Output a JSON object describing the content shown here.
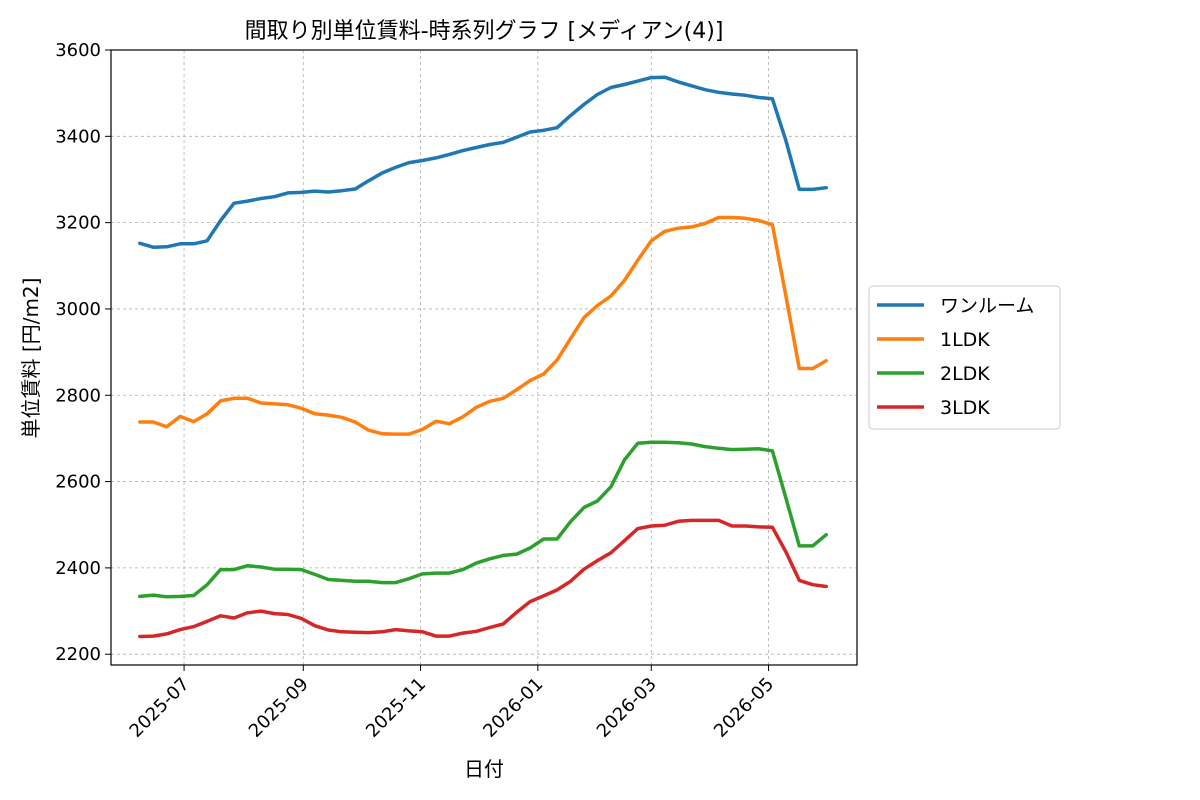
{
  "chart_data": {
    "type": "line",
    "title": "間取り別単位賃料-時系列グラフ [メディアン(4)]",
    "xlabel": "日付",
    "ylabel": "単位賃料 [円/m2]",
    "ylim": [
      2175,
      3600
    ],
    "yticks": [
      2200,
      2400,
      2600,
      2800,
      3000,
      3200,
      3400,
      3600
    ],
    "xlim": [
      "2025-05-24",
      "2026-06-16"
    ],
    "xticks": [
      "2025-07-01",
      "2025-09-01",
      "2025-11-01",
      "2026-01-01",
      "2026-03-01",
      "2026-05-01"
    ],
    "xtick_labels": [
      "2025-07",
      "2025-09",
      "2025-11",
      "2026-01",
      "2026-03",
      "2026-05"
    ],
    "grid": true,
    "legend_position": "right-outside",
    "x": [
      "2025-06-08",
      "2025-06-15",
      "2025-06-22",
      "2025-06-29",
      "2025-07-06",
      "2025-07-13",
      "2025-07-20",
      "2025-07-27",
      "2025-08-03",
      "2025-08-10",
      "2025-08-17",
      "2025-08-24",
      "2025-08-31",
      "2025-09-07",
      "2025-09-14",
      "2025-09-21",
      "2025-09-28",
      "2025-10-05",
      "2025-10-12",
      "2025-10-19",
      "2025-10-26",
      "2025-11-02",
      "2025-11-09",
      "2025-11-16",
      "2025-11-23",
      "2025-11-30",
      "2025-12-07",
      "2025-12-14",
      "2025-12-21",
      "2025-12-28",
      "2026-01-04",
      "2026-01-11",
      "2026-01-18",
      "2026-01-25",
      "2026-02-01",
      "2026-02-08",
      "2026-02-15",
      "2026-02-22",
      "2026-03-01",
      "2026-03-08",
      "2026-03-15",
      "2026-03-22",
      "2026-03-29",
      "2026-04-05",
      "2026-04-12",
      "2026-04-19",
      "2026-04-26",
      "2026-05-03",
      "2026-05-10",
      "2026-05-17",
      "2026-05-24",
      "2026-05-31"
    ],
    "series": [
      {
        "name": "ワンルーム",
        "color": "#1f77b4",
        "values": [
          3152,
          3143,
          3144,
          3151,
          3151,
          3158,
          3205,
          3245,
          3250,
          3256,
          3260,
          3269,
          3270,
          3273,
          3271,
          3274,
          3278,
          3297,
          3315,
          3328,
          3339,
          3344,
          3350,
          3358,
          3367,
          3374,
          3381,
          3386,
          3398,
          3410,
          3414,
          3420,
          3448,
          3474,
          3497,
          3513,
          3520,
          3528,
          3536,
          3537,
          3526,
          3517,
          3508,
          3502,
          3498,
          3495,
          3490,
          3487,
          3390,
          3277,
          3277,
          3281
        ]
      },
      {
        "name": "1LDK",
        "color": "#ff7f0e",
        "values": [
          2738,
          2738,
          2727,
          2751,
          2739,
          2757,
          2787,
          2793,
          2793,
          2782,
          2780,
          2778,
          2770,
          2757,
          2754,
          2749,
          2738,
          2719,
          2711,
          2710,
          2710,
          2721,
          2740,
          2734,
          2750,
          2772,
          2786,
          2793,
          2813,
          2834,
          2849,
          2882,
          2931,
          2980,
          3008,
          3030,
          3066,
          3113,
          3158,
          3180,
          3187,
          3190,
          3198,
          3212,
          3212,
          3210,
          3205,
          3195,
          3030,
          2862,
          2862,
          2880
        ]
      },
      {
        "name": "2LDK",
        "color": "#2ca02c",
        "values": [
          2334,
          2337,
          2333,
          2334,
          2336,
          2361,
          2396,
          2396,
          2405,
          2402,
          2397,
          2397,
          2396,
          2385,
          2373,
          2371,
          2369,
          2369,
          2366,
          2366,
          2375,
          2386,
          2388,
          2388,
          2396,
          2411,
          2421,
          2429,
          2432,
          2446,
          2467,
          2467,
          2507,
          2540,
          2555,
          2588,
          2650,
          2689,
          2691,
          2691,
          2690,
          2687,
          2681,
          2677,
          2674,
          2675,
          2676,
          2671,
          2562,
          2451,
          2451,
          2477
        ]
      },
      {
        "name": "3LDK",
        "color": "#d62728",
        "values": [
          2241,
          2242,
          2247,
          2257,
          2264,
          2276,
          2289,
          2284,
          2296,
          2300,
          2294,
          2292,
          2283,
          2266,
          2256,
          2252,
          2251,
          2250,
          2252,
          2257,
          2254,
          2252,
          2242,
          2242,
          2249,
          2253,
          2262,
          2270,
          2297,
          2322,
          2335,
          2349,
          2369,
          2397,
          2417,
          2435,
          2463,
          2491,
          2497,
          2499,
          2508,
          2510,
          2510,
          2510,
          2497,
          2497,
          2495,
          2494,
          2437,
          2371,
          2361,
          2357
        ]
      }
    ]
  }
}
